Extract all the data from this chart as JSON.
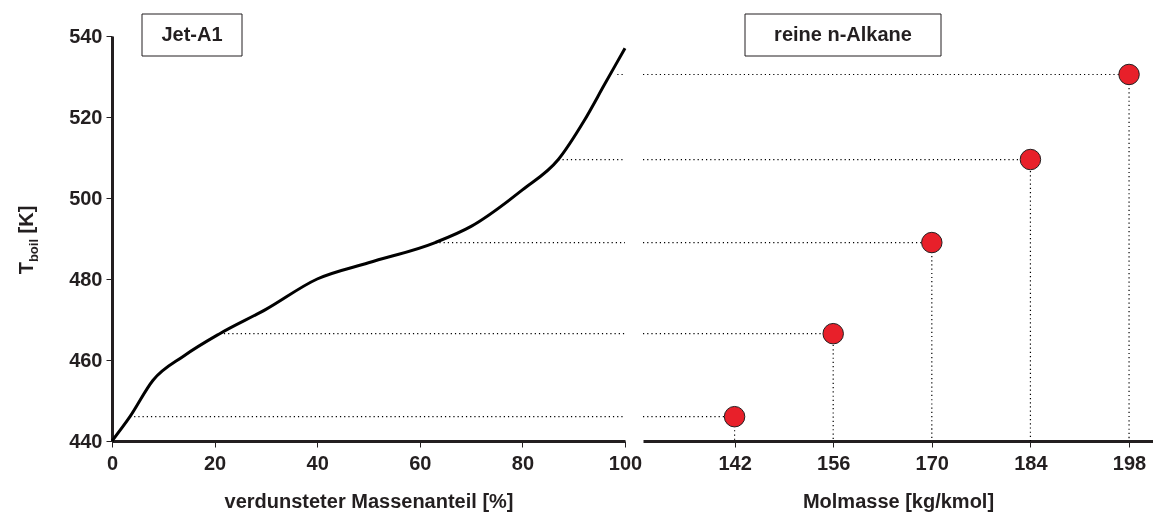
{
  "chart_data": [
    {
      "type": "line",
      "title": "Jet-A1",
      "xlabel": "verdunsteter Massenanteil  [%]",
      "ylabel": "T$_{boil}$ [K]",
      "xlim": [
        0,
        100
      ],
      "xticks": [
        0,
        20,
        40,
        60,
        80,
        100
      ],
      "ylim": [
        440,
        540
      ],
      "yticks": [
        440,
        460,
        480,
        500,
        520,
        540
      ],
      "series": [
        {
          "color": "#000000",
          "line_style": "dotted",
          "x": [
            3.5,
            100
          ],
          "values": [
            446,
            446
          ]
        },
        {
          "color": "#000000",
          "line_style": "dotted",
          "x": [
            21,
            100
          ],
          "values": [
            466.5,
            466.5
          ]
        },
        {
          "color": "#000000",
          "line_style": "dotted",
          "x": [
            63,
            100
          ],
          "values": [
            489,
            489
          ]
        },
        {
          "color": "#000000",
          "line_style": "dotted",
          "x": [
            87,
            100
          ],
          "values": [
            509.5,
            509.5
          ]
        },
        {
          "color": "#000000",
          "line_style": "dotted",
          "x": [
            98.5,
            100
          ],
          "values": [
            530.5,
            530.5
          ]
        },
        {
          "color": "#000000",
          "line_style": "solid",
          "x": [
            0,
            3.5,
            8,
            14,
            21,
            30,
            40,
            50,
            63,
            70,
            80,
            87,
            92,
            96,
            100
          ],
          "values": [
            440,
            446,
            455,
            461,
            466.5,
            472.5,
            480,
            484,
            489,
            493,
            502,
            509.5,
            519,
            528,
            537
          ]
        }
      ]
    },
    {
      "type": "scatter",
      "title": "reine n-Alkane",
      "xlabel": "Molmasse [kg/kmol]",
      "xlim": [
        129,
        201.4
      ],
      "xticks": [
        142,
        156,
        170,
        184,
        198
      ],
      "ylim": [
        440,
        540
      ],
      "yticks": [
        440,
        460,
        480,
        500,
        520,
        540
      ],
      "tick_labels": "x",
      "x": [
        142,
        156,
        170,
        184,
        198
      ],
      "series": [
        {
          "type": "line",
          "color": "#000000",
          "line_style": "dotted",
          "x": [
            129,
            142,
            142
          ],
          "values": [
            446,
            446,
            440
          ]
        },
        {
          "type": "line",
          "color": "#000000",
          "line_style": "dotted",
          "x": [
            129,
            156,
            156
          ],
          "values": [
            466.5,
            466.5,
            440
          ]
        },
        {
          "type": "line",
          "color": "#000000",
          "line_style": "dotted",
          "x": [
            129,
            170,
            170
          ],
          "values": [
            489,
            489,
            440
          ]
        },
        {
          "type": "line",
          "color": "#000000",
          "line_style": "dotted",
          "x": [
            129,
            184,
            184
          ],
          "values": [
            509.5,
            509.5,
            440
          ]
        },
        {
          "type": "line",
          "color": "#000000",
          "line_style": "dotted",
          "x": [
            129,
            198,
            198
          ],
          "values": [
            530.5,
            530.5,
            440
          ]
        },
        {
          "color": "#e8202a",
          "marker": "circle",
          "values": [
            446,
            466.5,
            489,
            509.5,
            530.5
          ]
        }
      ]
    }
  ]
}
